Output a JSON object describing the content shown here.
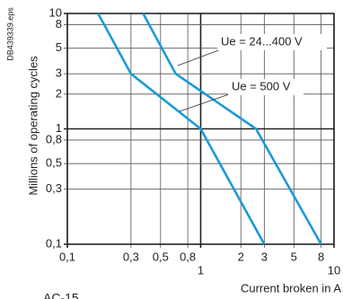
{
  "chart_data": {
    "type": "line",
    "file_id": "DB439339.eps",
    "ylabel": "Millions of operating cycles",
    "xlabel": "Current broken in A",
    "footnote": "AC-15",
    "log_x": true,
    "log_y": true,
    "grid": true,
    "xlim": [
      0.1,
      10
    ],
    "ylim": [
      0.1,
      10
    ],
    "xticks": [
      {
        "value": 0.1,
        "label": "0,1"
      },
      {
        "value": 0.3,
        "label": "0,3"
      },
      {
        "value": 0.5,
        "label": "0,5"
      },
      {
        "value": 0.8,
        "label": "0,8"
      },
      1,
      2,
      3,
      5,
      8,
      10
    ],
    "yticks": [
      {
        "value": 0.1,
        "label": "0,1"
      },
      {
        "value": 0.3,
        "label": "0,3"
      },
      {
        "value": 0.5,
        "label": "0,5"
      },
      {
        "value": 0.8,
        "label": "0,8"
      },
      1,
      2,
      3,
      5,
      8,
      10
    ],
    "series": [
      {
        "name": "Ue = 24...400 V",
        "color": "#1b9ad6",
        "x": [
          0.37,
          0.65,
          2.6,
          8
        ],
        "values": [
          10,
          3,
          1,
          0.1
        ]
      },
      {
        "name": "Ue = 500 V",
        "color": "#1b9ad6",
        "x": [
          0.17,
          0.3,
          1,
          3
        ],
        "values": [
          10,
          3,
          1,
          0.1
        ]
      }
    ]
  }
}
